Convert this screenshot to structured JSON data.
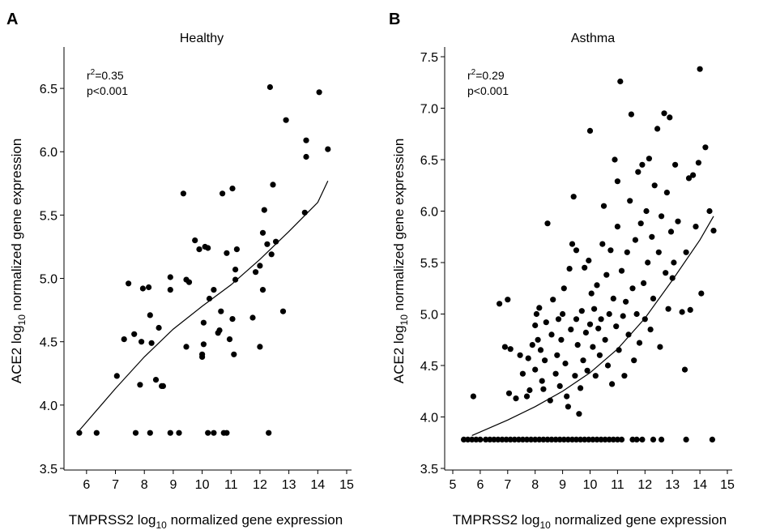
{
  "chart_data": [
    {
      "panel": "A",
      "type": "scatter",
      "title": "Healthy",
      "xlabel": {
        "main": "TMPRSS2 log",
        "sub": "10",
        "rest": " normalized gene expression"
      },
      "ylabel": {
        "main": "ACE2 log",
        "sub": "10",
        "rest": " normalized gene expression"
      },
      "stats": {
        "r2": {
          "label": "r",
          "sup": "2",
          "rest": "=0.35"
        },
        "p": "p<0.001"
      },
      "xlim": [
        5.5,
        15
      ],
      "ylim": [
        3.5,
        6.75
      ],
      "x_ticks": [
        "6",
        "7",
        "8",
        "9",
        "10",
        "11",
        "12",
        "13",
        "14",
        "15"
      ],
      "y_ticks": [
        "3.5",
        "4.0",
        "4.5",
        "5.0",
        "5.5",
        "6.0",
        "6.5"
      ],
      "x_tick_values": [
        6,
        7,
        8,
        9,
        10,
        11,
        12,
        13,
        14,
        15
      ],
      "y_tick_values": [
        3.5,
        4.0,
        4.5,
        5.0,
        5.5,
        6.0,
        6.5
      ],
      "fit": [
        [
          5.75,
          3.8
        ],
        [
          7,
          4.13
        ],
        [
          8,
          4.38
        ],
        [
          9,
          4.6
        ],
        [
          10,
          4.78
        ],
        [
          11,
          4.95
        ],
        [
          12,
          5.15
        ],
        [
          13,
          5.37
        ],
        [
          14,
          5.6
        ],
        [
          14.35,
          5.77
        ]
      ],
      "points": [
        [
          5.75,
          3.78
        ],
        [
          6.35,
          3.78
        ],
        [
          7.7,
          3.78
        ],
        [
          8.2,
          3.78
        ],
        [
          8.9,
          3.78
        ],
        [
          9.2,
          3.78
        ],
        [
          10.2,
          3.78
        ],
        [
          10.4,
          3.78
        ],
        [
          10.75,
          3.78
        ],
        [
          10.85,
          3.78
        ],
        [
          12.3,
          3.78
        ],
        [
          7.05,
          4.23
        ],
        [
          7.3,
          4.52
        ],
        [
          7.45,
          4.96
        ],
        [
          7.65,
          4.56
        ],
        [
          7.85,
          4.16
        ],
        [
          7.9,
          4.5
        ],
        [
          7.95,
          4.92
        ],
        [
          8.15,
          4.93
        ],
        [
          8.2,
          4.71
        ],
        [
          8.25,
          4.49
        ],
        [
          8.4,
          4.2
        ],
        [
          8.5,
          4.61
        ],
        [
          8.6,
          4.15
        ],
        [
          8.65,
          4.15
        ],
        [
          8.9,
          4.91
        ],
        [
          8.9,
          5.01
        ],
        [
          9.35,
          5.67
        ],
        [
          9.45,
          4.46
        ],
        [
          9.45,
          4.99
        ],
        [
          9.55,
          4.97
        ],
        [
          9.75,
          5.3
        ],
        [
          9.9,
          5.23
        ],
        [
          10.0,
          4.4
        ],
        [
          10.0,
          4.38
        ],
        [
          10.05,
          4.65
        ],
        [
          10.05,
          4.48
        ],
        [
          10.1,
          5.25
        ],
        [
          10.2,
          5.24
        ],
        [
          10.25,
          4.84
        ],
        [
          10.4,
          4.91
        ],
        [
          10.55,
          4.57
        ],
        [
          10.6,
          4.59
        ],
        [
          10.65,
          4.74
        ],
        [
          10.7,
          5.67
        ],
        [
          10.85,
          5.2
        ],
        [
          10.95,
          4.52
        ],
        [
          11.05,
          4.68
        ],
        [
          11.05,
          5.71
        ],
        [
          11.1,
          4.4
        ],
        [
          11.15,
          4.99
        ],
        [
          11.15,
          5.07
        ],
        [
          11.2,
          5.23
        ],
        [
          11.75,
          4.69
        ],
        [
          11.85,
          5.05
        ],
        [
          12.0,
          5.1
        ],
        [
          12.0,
          4.46
        ],
        [
          12.1,
          4.91
        ],
        [
          12.1,
          5.36
        ],
        [
          12.15,
          5.54
        ],
        [
          12.25,
          5.27
        ],
        [
          12.4,
          5.19
        ],
        [
          12.45,
          5.74
        ],
        [
          12.55,
          5.29
        ],
        [
          12.35,
          6.51
        ],
        [
          12.8,
          4.74
        ],
        [
          12.9,
          6.25
        ],
        [
          13.55,
          5.52
        ],
        [
          13.6,
          5.96
        ],
        [
          13.6,
          6.09
        ],
        [
          14.05,
          6.47
        ],
        [
          14.35,
          6.02
        ]
      ]
    },
    {
      "panel": "B",
      "type": "scatter",
      "title": "Asthma",
      "xlabel": {
        "main": "TMPRSS2 log",
        "sub": "10",
        "rest": " normalized gene expression"
      },
      "ylabel": {
        "main": "ACE2 log",
        "sub": "10",
        "rest": " normalized gene expression"
      },
      "stats": {
        "r2": {
          "label": "r",
          "sup": "2",
          "rest": "=0.29"
        },
        "p": "p<0.001"
      },
      "xlim": [
        5,
        15
      ],
      "ylim": [
        3.5,
        7.5
      ],
      "x_ticks": [
        "5",
        "6",
        "7",
        "8",
        "9",
        "10",
        "11",
        "12",
        "13",
        "14",
        "15"
      ],
      "y_ticks": [
        "3.5",
        "4.0",
        "4.5",
        "5.0",
        "5.5",
        "6.0",
        "6.5",
        "7.0",
        "7.5"
      ],
      "x_tick_values": [
        5,
        6,
        7,
        8,
        9,
        10,
        11,
        12,
        13,
        14,
        15
      ],
      "y_tick_values": [
        3.5,
        4.0,
        4.5,
        5.0,
        5.5,
        6.0,
        6.5,
        7.0,
        7.5
      ],
      "fit": [
        [
          5.7,
          3.82
        ],
        [
          7,
          3.97
        ],
        [
          8,
          4.1
        ],
        [
          9,
          4.25
        ],
        [
          10,
          4.43
        ],
        [
          11,
          4.66
        ],
        [
          12,
          4.96
        ],
        [
          13,
          5.33
        ],
        [
          14,
          5.72
        ],
        [
          14.5,
          5.95
        ]
      ],
      "points": [
        [
          5.4,
          3.78
        ],
        [
          5.55,
          3.78
        ],
        [
          5.7,
          3.78
        ],
        [
          5.85,
          3.78
        ],
        [
          6.0,
          3.78
        ],
        [
          6.2,
          3.78
        ],
        [
          6.35,
          3.78
        ],
        [
          6.5,
          3.78
        ],
        [
          6.65,
          3.78
        ],
        [
          6.8,
          3.78
        ],
        [
          6.95,
          3.78
        ],
        [
          7.1,
          3.78
        ],
        [
          7.25,
          3.78
        ],
        [
          7.4,
          3.78
        ],
        [
          7.55,
          3.78
        ],
        [
          7.7,
          3.78
        ],
        [
          7.85,
          3.78
        ],
        [
          8.0,
          3.78
        ],
        [
          8.15,
          3.78
        ],
        [
          8.3,
          3.78
        ],
        [
          8.45,
          3.78
        ],
        [
          8.6,
          3.78
        ],
        [
          8.75,
          3.78
        ],
        [
          8.9,
          3.78
        ],
        [
          9.05,
          3.78
        ],
        [
          9.2,
          3.78
        ],
        [
          9.35,
          3.78
        ],
        [
          9.5,
          3.78
        ],
        [
          9.65,
          3.78
        ],
        [
          9.8,
          3.78
        ],
        [
          9.95,
          3.78
        ],
        [
          10.1,
          3.78
        ],
        [
          10.25,
          3.78
        ],
        [
          10.4,
          3.78
        ],
        [
          10.55,
          3.78
        ],
        [
          10.7,
          3.78
        ],
        [
          10.85,
          3.78
        ],
        [
          11.0,
          3.78
        ],
        [
          11.15,
          3.78
        ],
        [
          11.55,
          3.78
        ],
        [
          11.7,
          3.78
        ],
        [
          11.9,
          3.78
        ],
        [
          12.3,
          3.78
        ],
        [
          12.6,
          3.78
        ],
        [
          13.5,
          3.78
        ],
        [
          14.45,
          3.78
        ],
        [
          5.75,
          4.2
        ],
        [
          6.7,
          5.1
        ],
        [
          7.0,
          5.14
        ],
        [
          6.9,
          4.68
        ],
        [
          7.1,
          4.66
        ],
        [
          7.05,
          4.23
        ],
        [
          7.3,
          4.18
        ],
        [
          7.45,
          4.6
        ],
        [
          7.55,
          4.42
        ],
        [
          7.7,
          4.2
        ],
        [
          7.75,
          4.57
        ],
        [
          7.8,
          4.26
        ],
        [
          7.9,
          4.7
        ],
        [
          8.0,
          4.46
        ],
        [
          8.0,
          4.89
        ],
        [
          8.05,
          5.0
        ],
        [
          8.1,
          4.75
        ],
        [
          8.15,
          5.06
        ],
        [
          8.2,
          4.65
        ],
        [
          8.25,
          4.35
        ],
        [
          8.3,
          4.27
        ],
        [
          8.35,
          4.55
        ],
        [
          8.4,
          4.92
        ],
        [
          8.45,
          5.88
        ],
        [
          8.55,
          4.16
        ],
        [
          8.6,
          4.8
        ],
        [
          8.65,
          5.14
        ],
        [
          8.75,
          4.42
        ],
        [
          8.8,
          4.6
        ],
        [
          8.85,
          4.95
        ],
        [
          8.9,
          4.3
        ],
        [
          8.95,
          4.75
        ],
        [
          9.0,
          5.0
        ],
        [
          9.05,
          5.25
        ],
        [
          9.1,
          4.52
        ],
        [
          9.15,
          4.2
        ],
        [
          9.2,
          4.1
        ],
        [
          9.25,
          5.44
        ],
        [
          9.3,
          4.85
        ],
        [
          9.35,
          5.68
        ],
        [
          9.4,
          6.14
        ],
        [
          9.45,
          4.4
        ],
        [
          9.5,
          4.95
        ],
        [
          9.5,
          5.62
        ],
        [
          9.55,
          4.7
        ],
        [
          9.6,
          4.03
        ],
        [
          9.65,
          4.28
        ],
        [
          9.7,
          5.03
        ],
        [
          9.75,
          4.55
        ],
        [
          9.8,
          5.45
        ],
        [
          9.85,
          4.82
        ],
        [
          9.9,
          4.45
        ],
        [
          9.95,
          5.52
        ],
        [
          10.0,
          6.78
        ],
        [
          10.0,
          4.9
        ],
        [
          10.05,
          5.2
        ],
        [
          10.1,
          4.68
        ],
        [
          10.15,
          5.05
        ],
        [
          10.2,
          4.4
        ],
        [
          10.25,
          5.28
        ],
        [
          10.3,
          4.86
        ],
        [
          10.35,
          4.6
        ],
        [
          10.4,
          4.95
        ],
        [
          10.45,
          5.68
        ],
        [
          10.5,
          6.05
        ],
        [
          10.55,
          4.75
        ],
        [
          10.6,
          5.38
        ],
        [
          10.65,
          4.5
        ],
        [
          10.7,
          5.0
        ],
        [
          10.75,
          5.62
        ],
        [
          10.8,
          4.32
        ],
        [
          10.85,
          5.15
        ],
        [
          10.9,
          6.5
        ],
        [
          10.95,
          4.88
        ],
        [
          11.0,
          6.29
        ],
        [
          11.0,
          5.85
        ],
        [
          11.05,
          4.65
        ],
        [
          11.1,
          7.26
        ],
        [
          11.15,
          5.42
        ],
        [
          11.2,
          4.98
        ],
        [
          11.25,
          4.4
        ],
        [
          11.3,
          5.12
        ],
        [
          11.35,
          5.6
        ],
        [
          11.4,
          4.8
        ],
        [
          11.45,
          6.1
        ],
        [
          11.5,
          6.94
        ],
        [
          11.55,
          5.25
        ],
        [
          11.6,
          4.55
        ],
        [
          11.65,
          5.72
        ],
        [
          11.7,
          5.0
        ],
        [
          11.75,
          6.38
        ],
        [
          11.8,
          4.72
        ],
        [
          11.85,
          5.88
        ],
        [
          11.9,
          6.45
        ],
        [
          11.95,
          5.3
        ],
        [
          12.0,
          4.95
        ],
        [
          12.05,
          6.0
        ],
        [
          12.1,
          5.5
        ],
        [
          12.15,
          6.51
        ],
        [
          12.2,
          4.85
        ],
        [
          12.25,
          5.75
        ],
        [
          12.3,
          5.15
        ],
        [
          12.35,
          6.25
        ],
        [
          12.45,
          6.8
        ],
        [
          12.5,
          5.6
        ],
        [
          12.55,
          4.68
        ],
        [
          12.6,
          5.95
        ],
        [
          12.7,
          6.95
        ],
        [
          12.75,
          5.4
        ],
        [
          12.8,
          6.18
        ],
        [
          12.85,
          5.05
        ],
        [
          12.9,
          6.91
        ],
        [
          12.95,
          5.8
        ],
        [
          13.05,
          5.5
        ],
        [
          13.1,
          6.45
        ],
        [
          13.2,
          5.9
        ],
        [
          13.35,
          5.02
        ],
        [
          13.45,
          4.46
        ],
        [
          13.5,
          5.6
        ],
        [
          13.6,
          6.32
        ],
        [
          13.65,
          5.04
        ],
        [
          13.75,
          6.35
        ],
        [
          13.85,
          5.85
        ],
        [
          13.95,
          6.47
        ],
        [
          14.0,
          7.38
        ],
        [
          14.05,
          5.2
        ],
        [
          14.2,
          6.62
        ],
        [
          14.35,
          6.0
        ],
        [
          14.5,
          5.81
        ],
        [
          13.0,
          5.35
        ]
      ]
    }
  ]
}
